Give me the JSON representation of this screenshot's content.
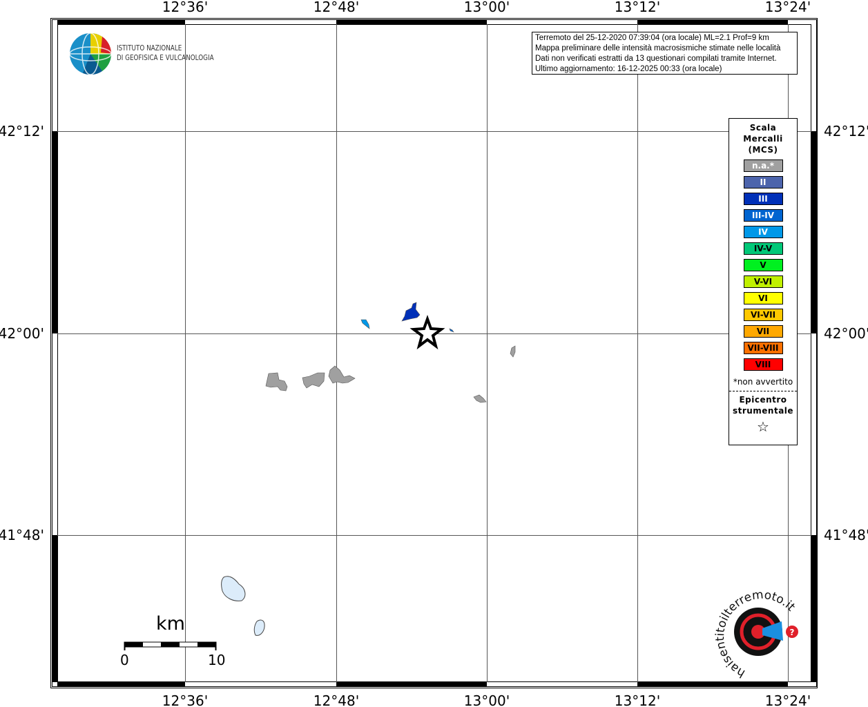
{
  "map": {
    "top_ticks": [
      "12°36'",
      "12°48'",
      "13°00'",
      "13°12'",
      "13°24'"
    ],
    "bottom_ticks": [
      "12°36'",
      "12°48'",
      "13°00'",
      "13°12'",
      "13°24'"
    ],
    "left_ticks": [
      "42°12'",
      "42°00'",
      "41°48'"
    ],
    "right_ticks": [
      "42°12'",
      "42°00'",
      "41°48'"
    ]
  },
  "logo": {
    "ingv_line1": "ISTITUTO NAZIONALE",
    "ingv_line2": "DI GEOFISICA E VULCANOLOGIA",
    "hsit_text": "www.haisentitoilterremoto.it"
  },
  "info_box": {
    "line1": "Terremoto del 25-12-2020 07:39:04 (ora locale) ML=2.1 Prof=9 km",
    "line2": "Mappa preliminare delle intensità macrosismiche stimate nelle località",
    "line3": "Dati non verificati estratti da 13 questionari compilati tramite Internet.",
    "line4": "Ultimo aggiornamento: 16-12-2025 00:33 (ora locale)"
  },
  "legend": {
    "title_lines": [
      "Scala",
      "Mercalli",
      "(MCS)"
    ],
    "classes": [
      {
        "label": "n.a.*",
        "color": "#a0a0a0",
        "text_color": "#ffffff"
      },
      {
        "label": "II",
        "color": "#4c64ac",
        "text_color": "#ffffff"
      },
      {
        "label": "III",
        "color": "#0030b8",
        "text_color": "#ffffff"
      },
      {
        "label": "III-IV",
        "color": "#0064d0",
        "text_color": "#ffffff"
      },
      {
        "label": "IV",
        "color": "#0098e8",
        "text_color": "#ffffff"
      },
      {
        "label": "IV-V",
        "color": "#00c878",
        "text_color": "#000000"
      },
      {
        "label": "V",
        "color": "#00f020",
        "text_color": "#000000"
      },
      {
        "label": "V-VI",
        "color": "#c0f000",
        "text_color": "#000000"
      },
      {
        "label": "VI",
        "color": "#ffff00",
        "text_color": "#000000"
      },
      {
        "label": "VI-VII",
        "color": "#ffc800",
        "text_color": "#000000"
      },
      {
        "label": "VII",
        "color": "#ffa800",
        "text_color": "#000000"
      },
      {
        "label": "VII-VIII",
        "color": "#ff7000",
        "text_color": "#000000"
      },
      {
        "label": "VIII",
        "color": "#ff0000",
        "text_color": "#000000"
      }
    ],
    "note": "*non avvertito",
    "epicenter_lines": [
      "Epicentro",
      "strumentale"
    ],
    "epicenter_symbol": "☆"
  },
  "scale_bar": {
    "unit": "km",
    "start": "0",
    "end": "10"
  }
}
